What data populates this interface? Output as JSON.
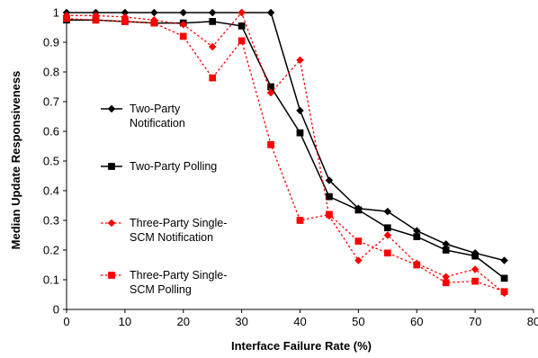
{
  "chart_data": {
    "type": "line",
    "title": "",
    "xlabel": "Interface Failure Rate (%)",
    "ylabel": "Median Update Responsiveness",
    "xlim": [
      0,
      80
    ],
    "ylim": [
      0,
      1
    ],
    "x_ticks": [
      "0",
      "10",
      "20",
      "30",
      "40",
      "50",
      "60",
      "70",
      "80"
    ],
    "y_ticks": [
      "0",
      "0.1",
      "0.2",
      "0.3",
      "0.4",
      "0.5",
      "0.6",
      "0.7",
      "0.8",
      "0.9",
      "1"
    ],
    "grid": false,
    "legend_position": "left-center",
    "series": [
      {
        "name": "Two-Party Notification",
        "legend_lines": [
          "Two-Party",
          "Notification"
        ],
        "color": "#000000",
        "line_style": "solid",
        "marker": "diamond",
        "x": [
          0,
          5,
          10,
          15,
          20,
          25,
          30,
          35,
          40,
          45,
          50,
          55,
          60,
          65,
          70,
          75
        ],
        "y": [
          1.0,
          1.0,
          1.0,
          1.0,
          1.0,
          1.0,
          1.0,
          1.0,
          0.67,
          0.435,
          0.34,
          0.33,
          0.265,
          0.22,
          0.19,
          0.165
        ]
      },
      {
        "name": "Two-Party Polling",
        "legend_lines": [
          "Two-Party Polling"
        ],
        "color": "#000000",
        "line_style": "solid",
        "marker": "square",
        "x": [
          0,
          5,
          10,
          15,
          20,
          25,
          30,
          35,
          40,
          45,
          50,
          55,
          60,
          65,
          70,
          75
        ],
        "y": [
          0.975,
          0.975,
          0.97,
          0.965,
          0.965,
          0.97,
          0.955,
          0.75,
          0.595,
          0.38,
          0.335,
          0.275,
          0.245,
          0.2,
          0.18,
          0.105
        ]
      },
      {
        "name": "Three-Party Single-SCM Notification",
        "legend_lines": [
          "Three-Party Single-",
          "SCM Notification"
        ],
        "color": "#ff0000",
        "line_style": "dotted",
        "marker": "diamond",
        "x": [
          0,
          5,
          10,
          15,
          20,
          25,
          30,
          35,
          40,
          45,
          50,
          55,
          60,
          65,
          70,
          75
        ],
        "y": [
          0.99,
          0.99,
          0.985,
          0.975,
          0.96,
          0.885,
          1.0,
          0.73,
          0.84,
          0.315,
          0.165,
          0.25,
          0.155,
          0.11,
          0.135,
          0.055
        ]
      },
      {
        "name": "Three-Party Single-SCM Polling",
        "legend_lines": [
          "Three-Party Single-",
          "SCM Polling"
        ],
        "color": "#ff0000",
        "line_style": "dotted",
        "marker": "square",
        "x": [
          0,
          5,
          10,
          15,
          20,
          25,
          30,
          35,
          40,
          45,
          50,
          55,
          60,
          65,
          70,
          75
        ],
        "y": [
          0.98,
          0.975,
          0.97,
          0.965,
          0.92,
          0.78,
          0.905,
          0.555,
          0.3,
          0.32,
          0.23,
          0.19,
          0.15,
          0.09,
          0.095,
          0.06
        ]
      }
    ]
  }
}
